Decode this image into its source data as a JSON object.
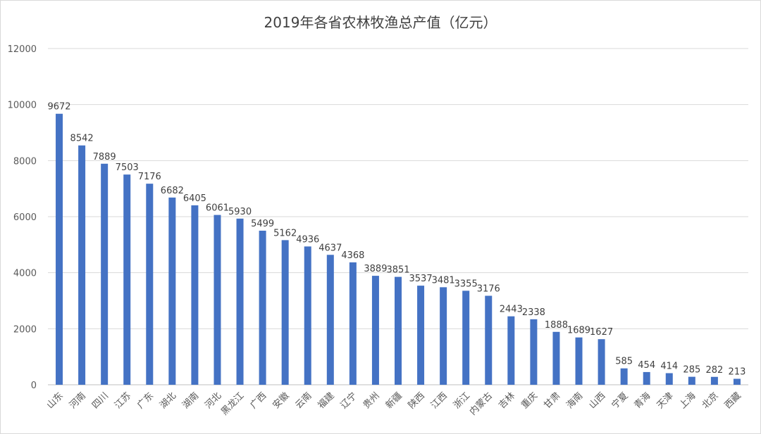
{
  "chart_data": {
    "type": "bar",
    "title": "2019年各省农林牧渔总产值（亿元）",
    "xlabel": "",
    "ylabel": "",
    "ylim": [
      0,
      12000
    ],
    "yticks": [
      0,
      2000,
      4000,
      6000,
      8000,
      10000,
      12000
    ],
    "grid": true,
    "bar_color": "#4472C4",
    "categories": [
      "山东",
      "河南",
      "四川",
      "江苏",
      "广东",
      "湖北",
      "湖南",
      "河北",
      "黑龙江",
      "广西",
      "安徽",
      "云南",
      "福建",
      "辽宁",
      "贵州",
      "新疆",
      "陕西",
      "江西",
      "浙江",
      "内蒙古",
      "吉林",
      "重庆",
      "甘肃",
      "海南",
      "山西",
      "宁夏",
      "青海",
      "天津",
      "上海",
      "北京",
      "西藏"
    ],
    "values": [
      9672,
      8542,
      7889,
      7503,
      7176,
      6682,
      6405,
      6061,
      5930,
      5499,
      5162,
      4936,
      4637,
      4368,
      3889,
      3851,
      3537,
      3481,
      3355,
      3176,
      2443,
      2338,
      1888,
      1689,
      1627,
      585,
      454,
      414,
      285,
      282,
      213
    ]
  }
}
